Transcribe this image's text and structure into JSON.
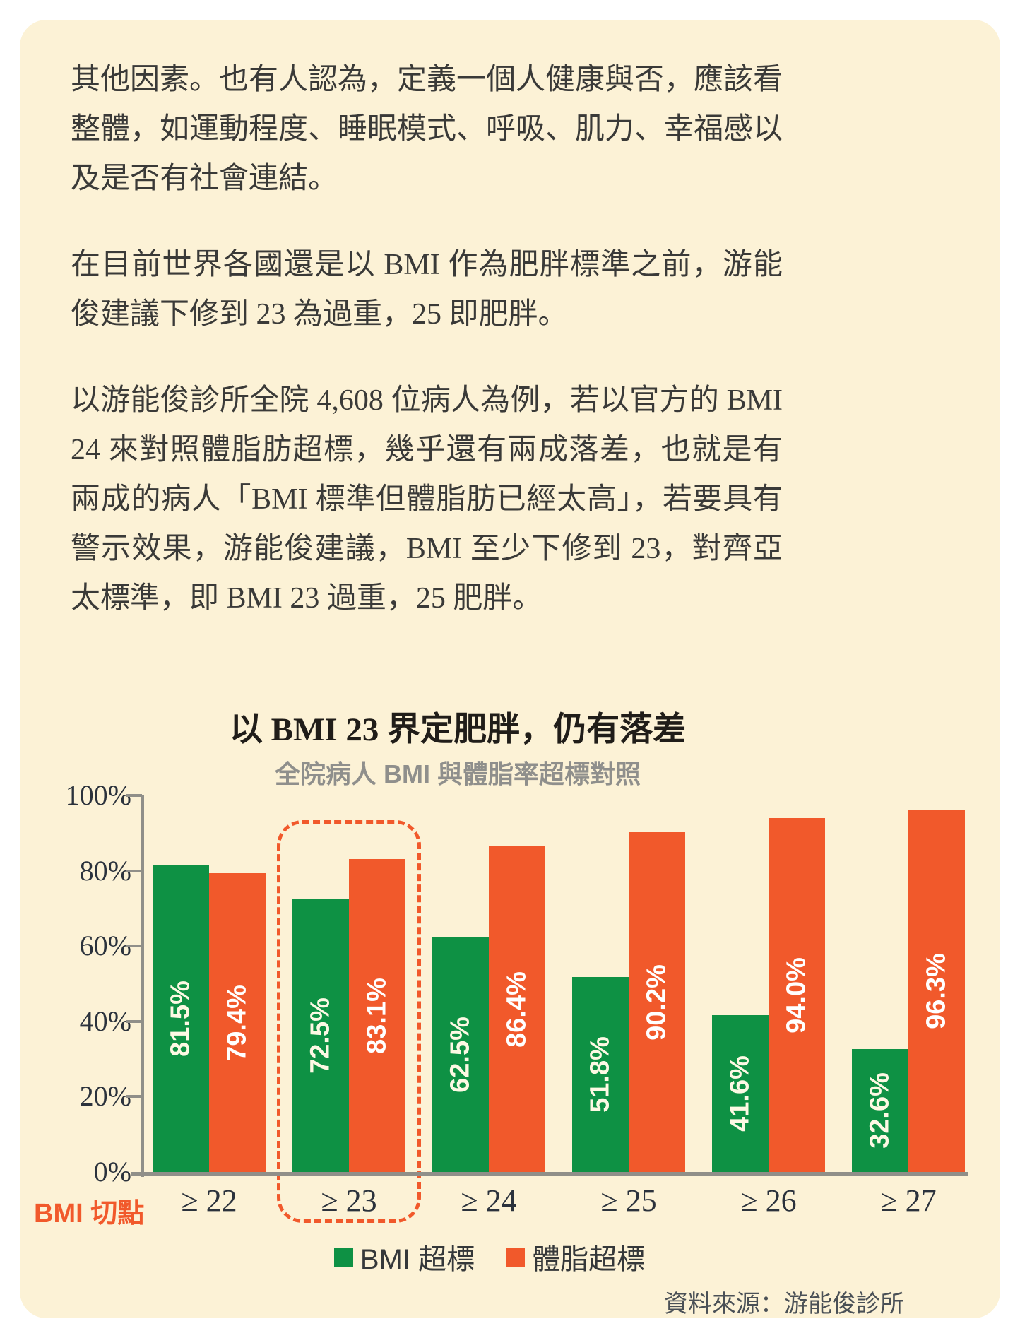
{
  "article": {
    "paragraphs": [
      "其他因素。也有人認為，定義一個人健康與否，應該看整體，如運動程度、睡眠模式、呼吸、肌力、幸福感以及是否有社會連結。",
      "在目前世界各國還是以 BMI 作為肥胖標準之前，游能俊建議下修到 23 為過重，25 即肥胖。",
      "以游能俊診所全院 4,608 位病人為例，若以官方的 BMI 24 來對照體脂肪超標，幾乎還有兩成落差，也就是有兩成的病人「BMI 標準但體脂肪已經太高」，若要具有警示效果，游能俊建議，BMI 至少下修到 23，對齊亞太標準，即 BMI 23 過重，25 肥胖。"
    ]
  },
  "chart": {
    "title": "以 BMI 23 界定肥胖，仍有落差",
    "subtitle": "全院病人 BMI 與體脂率超標對照",
    "x_axis_title": "BMI 切點",
    "source": "資料來源：游能俊診所"
  },
  "chart_data": {
    "type": "bar",
    "title": "以 BMI 23 界定肥胖，仍有落差",
    "subtitle": "全院病人 BMI 與體脂率超標對照",
    "categories": [
      "≥ 22",
      "≥ 23",
      "≥ 24",
      "≥ 25",
      "≥ 26",
      "≥ 27"
    ],
    "series": [
      {
        "name": "BMI 超標",
        "color": "#0e9144",
        "label_color": "#fdf9e4",
        "values": [
          81.5,
          72.5,
          62.5,
          51.8,
          41.6,
          32.6
        ],
        "labels": [
          "81.5%",
          "72.5%",
          "62.5%",
          "51.8%",
          "41.6%",
          "32.6%"
        ]
      },
      {
        "name": "體脂超標",
        "color": "#f1592b",
        "label_color": "#ffffff",
        "values": [
          79.4,
          83.1,
          86.4,
          90.2,
          94.0,
          96.3
        ],
        "labels": [
          "79.4%",
          "83.1%",
          "86.4%",
          "90.2%",
          "94.0%",
          "96.3%"
        ]
      }
    ],
    "y_ticks": [
      "0%",
      "20%",
      "40%",
      "60%",
      "80%",
      "100%"
    ],
    "ylim": [
      0,
      100
    ],
    "xlabel": "BMI 切點",
    "grid": false,
    "legend_position": "bottom",
    "highlight_category_index": 1,
    "highlight_style": "dashed-rounded-box",
    "source": "資料來源：游能俊診所"
  }
}
